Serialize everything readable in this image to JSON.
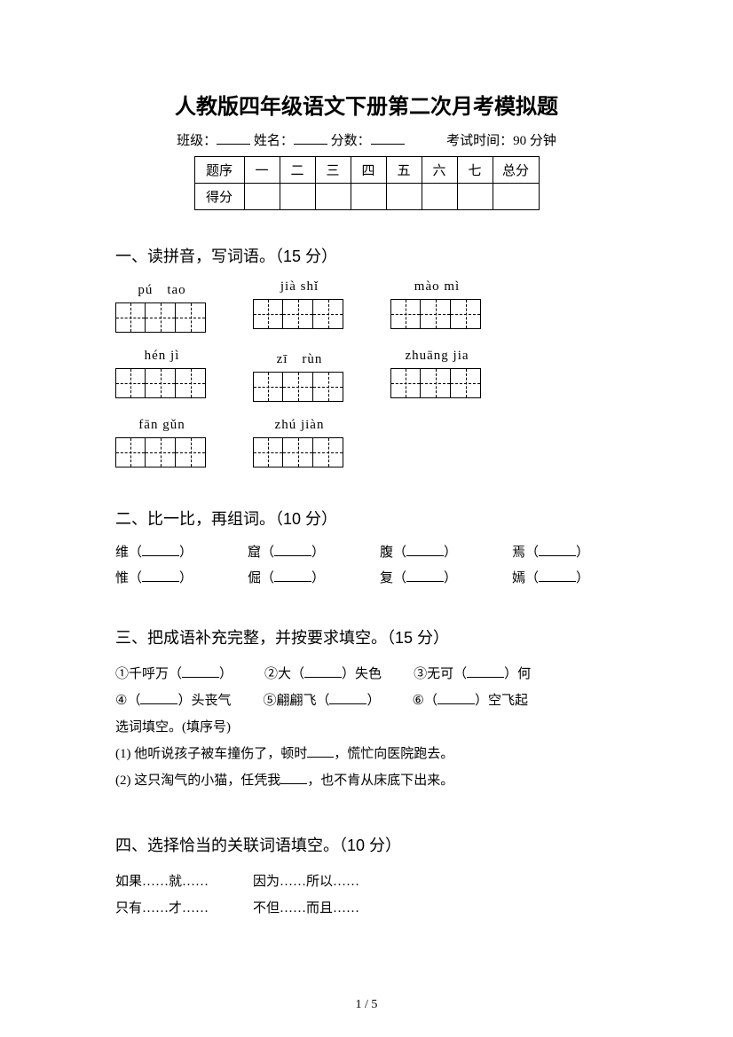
{
  "title": "人教版四年级语文下册第二次月考模拟题",
  "meta": {
    "class_label": "班级：",
    "name_label": "姓名：",
    "score_label": "分数：",
    "time_label": "考试时间：90 分钟"
  },
  "score_table": {
    "header_label": "题序",
    "score_label": "得分",
    "cols": [
      "一",
      "二",
      "三",
      "四",
      "五",
      "六",
      "七"
    ],
    "total_label": "总分"
  },
  "section1": {
    "heading": "一、读拼音，写词语。（15 分）",
    "items": [
      {
        "pinyin": "pú　tao",
        "boxes": 3
      },
      {
        "pinyin": "jià shǐ",
        "boxes": 3
      },
      {
        "pinyin": "mào mì",
        "boxes": 3
      },
      {
        "pinyin": "hén jì",
        "boxes": 3
      },
      {
        "pinyin": "zī　rùn",
        "boxes": 3
      },
      {
        "pinyin": "zhuāng jia",
        "boxes": 3
      },
      {
        "pinyin": "fān gǔn",
        "boxes": 3
      },
      {
        "pinyin": "zhú jiàn",
        "boxes": 3
      }
    ]
  },
  "section2": {
    "heading": "二、比一比，再组词。（10 分）",
    "pairs": [
      [
        "维",
        "惟"
      ],
      [
        "窟",
        "倔"
      ],
      [
        "腹",
        "复"
      ],
      [
        "焉",
        "嫣"
      ]
    ]
  },
  "section3": {
    "heading": "三、把成语补充完整，并按要求填空。（15 分）",
    "idioms_row1": [
      "①千呼万（",
      "）",
      "②大（",
      "）失色",
      "③无可（",
      "）何"
    ],
    "idioms_row2": [
      "④（",
      "）头丧气",
      "⑤翩翩飞（",
      "）",
      "⑥（",
      "）空飞起"
    ],
    "choose_label": "选词填空。(填序号)",
    "sent1": "(1) 他听说孩子被车撞伤了，顿时",
    "sent1_tail": "，慌忙向医院跑去。",
    "sent2": "(2) 这只淘气的小猫，任凭我",
    "sent2_tail": "，也不肯从床底下出来。"
  },
  "section4": {
    "heading": "四、选择恰当的关联词语填空。（10 分）",
    "row1": [
      "如果……就……",
      "因为……所以……"
    ],
    "row2": [
      "只有……才……",
      "不但……而且……"
    ]
  },
  "page_num": "1 / 5"
}
